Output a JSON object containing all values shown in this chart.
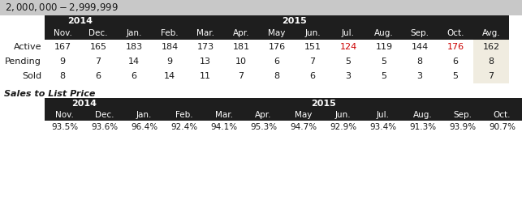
{
  "title": "$2,000,000 - $2,999,999",
  "title_bg": "#c8c8c8",
  "header_bg": "#1e1e1e",
  "header_text_color": "#ffffff",
  "avg_col_bg": "#f0ece0",
  "years": [
    "2014",
    "2015"
  ],
  "months": [
    "Nov.",
    "Dec.",
    "Jan.",
    "Feb.",
    "Mar.",
    "Apr.",
    "May",
    "Jun.",
    "Jul.",
    "Aug.",
    "Sep.",
    "Oct.",
    "Avg."
  ],
  "rows": {
    "Active": [
      167,
      165,
      183,
      184,
      173,
      181,
      176,
      151,
      124,
      119,
      144,
      176,
      162
    ],
    "Pending": [
      9,
      7,
      14,
      9,
      13,
      10,
      6,
      7,
      5,
      5,
      8,
      6,
      8
    ],
    "Sold": [
      8,
      6,
      6,
      14,
      11,
      7,
      8,
      6,
      3,
      5,
      3,
      5,
      7
    ]
  },
  "highlight_active_jul": true,
  "highlight_color": "#cc0000",
  "highlight_oct_color": "#cc0000",
  "sales_title": "Sales to List Price",
  "sales_months": [
    "Nov.",
    "Dec.",
    "Jan.",
    "Feb.",
    "Mar.",
    "Apr.",
    "May",
    "Jun.",
    "Jul.",
    "Aug.",
    "Sep.",
    "Oct."
  ],
  "sales_values": [
    "93.5%",
    "93.6%",
    "96.4%",
    "92.4%",
    "94.1%",
    "95.3%",
    "94.7%",
    "92.9%",
    "93.4%",
    "91.3%",
    "93.9%",
    "90.7%"
  ],
  "normal_text_color": "#1a1a1a",
  "cell_text_color": "#1a1a1a",
  "fig_width": 6.43,
  "fig_height": 2.47,
  "dpi": 100
}
